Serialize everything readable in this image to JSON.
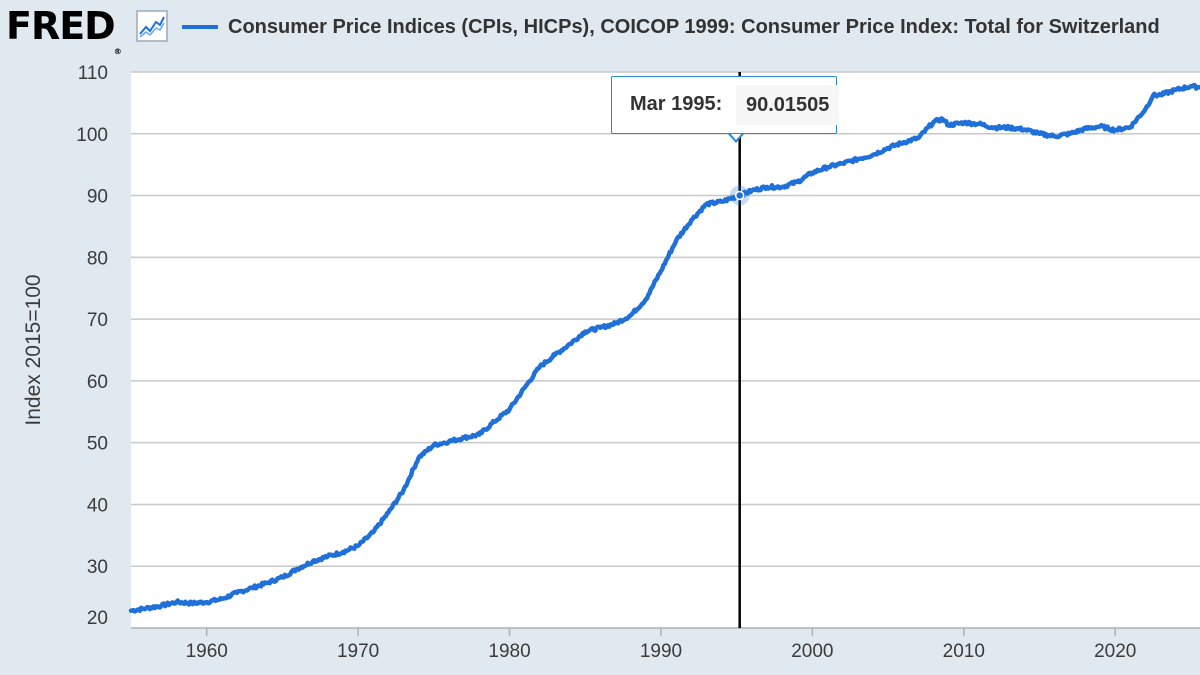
{
  "header": {
    "logo_text": "FRED",
    "logo_reg": "®",
    "legend_label": "Consumer Price Indices (CPIs, HICPs), COICOP 1999: Consumer Price Index: Total for Switzerland"
  },
  "colors": {
    "series": "#1f70d8",
    "background": "#e1e9f0",
    "plot_background": "#ffffff",
    "grid": "#c8c8c8",
    "crosshair": "#000000",
    "tooltip_border": "#2b8ad1"
  },
  "tooltip": {
    "date": "Mar 1995:",
    "value": "90.01505"
  },
  "chart_data": {
    "type": "line",
    "title": "",
    "xlabel": "",
    "ylabel": "Index 2015=100",
    "xlim": [
      1955.0,
      2025.6
    ],
    "ylim": [
      20,
      110
    ],
    "x_ticks": [
      1960,
      1970,
      1980,
      1990,
      2000,
      2010,
      2020
    ],
    "y_ticks": [
      20,
      30,
      40,
      50,
      60,
      70,
      80,
      90,
      100,
      110
    ],
    "grid": true,
    "legend": "top",
    "crosshair_x": 1995.2,
    "highlight_point": {
      "x": 1995.2,
      "y": 90.01505
    },
    "series": [
      {
        "name": "Consumer Price Indices (CPIs, HICPs), COICOP 1999: Consumer Price Index: Total for Switzerland",
        "x": [
          1955.0,
          1956.0,
          1957.0,
          1958.0,
          1959.0,
          1960.0,
          1961.0,
          1962.0,
          1963.0,
          1964.0,
          1965.0,
          1966.0,
          1967.0,
          1968.0,
          1969.0,
          1970.0,
          1971.0,
          1972.0,
          1973.0,
          1974.0,
          1975.0,
          1976.0,
          1977.0,
          1978.0,
          1979.0,
          1980.0,
          1981.0,
          1982.0,
          1983.0,
          1984.0,
          1985.0,
          1986.0,
          1987.0,
          1988.0,
          1989.0,
          1990.0,
          1991.0,
          1992.0,
          1993.0,
          1994.0,
          1995.2,
          1996.0,
          1997.0,
          1998.0,
          1999.0,
          2000.0,
          2001.0,
          2002.0,
          2003.0,
          2004.0,
          2005.0,
          2006.0,
          2007.0,
          2008.0,
          2008.6,
          2009.0,
          2010.0,
          2011.0,
          2012.0,
          2013.0,
          2014.0,
          2015.0,
          2016.0,
          2017.0,
          2018.0,
          2019.0,
          2020.0,
          2021.0,
          2022.0,
          2022.5,
          2023.0,
          2024.0,
          2025.0,
          2025.6
        ],
        "y": [
          22.8,
          23.2,
          23.6,
          24.2,
          24.0,
          24.2,
          24.7,
          25.7,
          26.5,
          27.3,
          28.2,
          29.6,
          30.8,
          31.6,
          32.3,
          33.3,
          35.5,
          38.7,
          42.3,
          47.6,
          49.6,
          50.2,
          50.8,
          51.3,
          53.4,
          55.4,
          58.9,
          62.3,
          64.2,
          66.0,
          68.0,
          68.6,
          69.3,
          70.6,
          73.2,
          77.8,
          82.7,
          86.0,
          88.6,
          89.0,
          90.01505,
          90.8,
          91.4,
          91.4,
          92.2,
          93.7,
          94.6,
          95.2,
          95.9,
          96.6,
          97.7,
          98.6,
          99.3,
          101.9,
          102.4,
          101.4,
          101.8,
          101.6,
          101.0,
          101.0,
          100.7,
          100.0,
          99.6,
          100.0,
          100.8,
          101.2,
          100.6,
          101.1,
          104.0,
          106.2,
          106.3,
          107.1,
          107.7,
          107.5
        ]
      }
    ]
  }
}
